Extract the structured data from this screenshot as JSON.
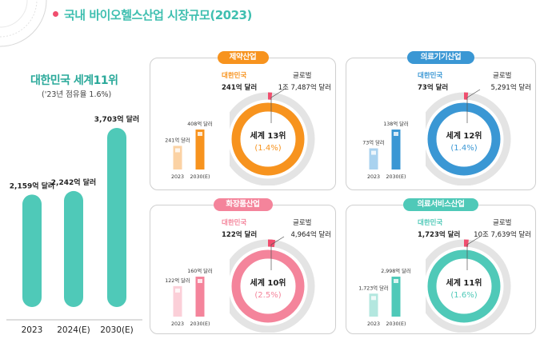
{
  "page_title": "국내 바이오헬스산업 시장규모(2023)",
  "summary": {
    "headline": "대한민국 세계11위",
    "share_note": "('23년 점유율 1.6%)"
  },
  "colors": {
    "teal": "#4fc9b8",
    "orange": "#f7931e",
    "blue": "#3a97d4",
    "pink": "#f4849b",
    "accent_red": "#f04e6e"
  },
  "chart_data": [
    {
      "type": "bar",
      "categories": [
        "2023",
        "2024(E)",
        "2030(E)"
      ],
      "values": [
        2159,
        2242,
        3703
      ],
      "value_labels": [
        "2,159억 달러",
        "2,242억 달러",
        "3,703억 달러"
      ],
      "unit": "억 달러"
    },
    {
      "type": "pie",
      "title": "제약산업",
      "korea_label": "대한민국",
      "korea_value": "241억 달러",
      "global_label": "글로벌",
      "global_value": "1조 7,487억 달러",
      "rank": "세계 13위",
      "share": "(1.4%)",
      "share_value": 1.4,
      "mini_bars": {
        "categories": [
          "2023",
          "2030(E)"
        ],
        "values": [
          241,
          408
        ],
        "labels": [
          "241억 달러",
          "408억 달러"
        ]
      },
      "color": "#f7931e",
      "light": "#fbd2a4"
    },
    {
      "type": "pie",
      "title": "의료기기산업",
      "korea_label": "대한민국",
      "korea_value": "73억 달러",
      "global_label": "글로벌",
      "global_value": "5,291억 달러",
      "rank": "세계 12위",
      "share": "(1.4%)",
      "share_value": 1.4,
      "mini_bars": {
        "categories": [
          "2023",
          "2030(E)"
        ],
        "values": [
          73,
          138
        ],
        "labels": [
          "73억 달러",
          "138억 달러"
        ]
      },
      "color": "#3a97d4",
      "light": "#a9d2ef"
    },
    {
      "type": "pie",
      "title": "화장품산업",
      "korea_label": "대한민국",
      "korea_value": "122억 달러",
      "global_label": "글로벌",
      "global_value": "4,964억 달러",
      "rank": "세계 10위",
      "share": "(2.5%)",
      "share_value": 2.5,
      "mini_bars": {
        "categories": [
          "2023",
          "2030(E)"
        ],
        "values": [
          122,
          160
        ],
        "labels": [
          "122억 달러",
          "160억 달러"
        ]
      },
      "color": "#f4849b",
      "light": "#fbcfd8"
    },
    {
      "type": "pie",
      "title": "의료서비스산업",
      "korea_label": "대한민국",
      "korea_value": "1,723억 달러",
      "global_label": "글로벌",
      "global_value": "10조 7,639억 달러",
      "rank": "세계 11위",
      "share": "(1.6%)",
      "share_value": 1.6,
      "mini_bars": {
        "categories": [
          "2023",
          "2030(E)"
        ],
        "values": [
          1723,
          2998
        ],
        "labels": [
          "1,723억 달러",
          "2,998억 달러"
        ]
      },
      "color": "#4fc9b8",
      "light": "#b3e7df"
    }
  ]
}
